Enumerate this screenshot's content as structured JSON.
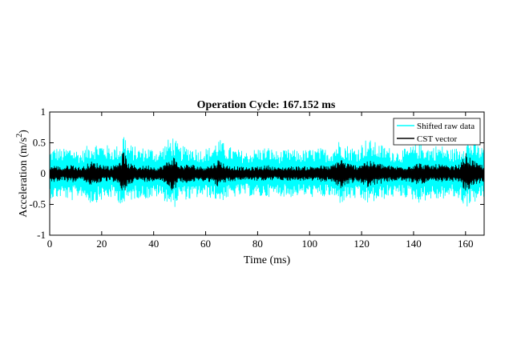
{
  "chart_data": {
    "type": "line",
    "title": "Operation Cycle: 167.152 ms",
    "xlabel": "Time (ms)",
    "ylabel": {
      "base": "Acceleration (m/s",
      "superscript": "2",
      "suffix": ")"
    },
    "xlim": [
      0,
      167.152
    ],
    "ylim": [
      -1,
      1
    ],
    "xticks": [
      0,
      20,
      40,
      60,
      80,
      100,
      120,
      140,
      160
    ],
    "yticks": [
      -1,
      -0.5,
      0,
      0.5,
      1
    ],
    "xtick_labels": [
      "0",
      "20",
      "40",
      "60",
      "80",
      "100",
      "120",
      "140",
      "160"
    ],
    "ytick_labels": [
      "-1",
      "-0.5",
      "0",
      "0.5",
      "1"
    ],
    "grid": false,
    "legend_position": "top-right",
    "series": [
      {
        "name": "Shifted raw data",
        "color": "#00FFFF",
        "envelope": {
          "x": [
            0,
            2,
            5,
            8,
            12,
            16,
            20,
            24,
            27.5,
            28.5,
            30,
            34,
            38,
            42,
            46,
            47.5,
            50,
            54,
            58,
            62,
            65,
            68,
            72,
            76,
            80,
            84,
            88,
            92,
            96,
            100,
            104,
            108,
            112,
            114,
            118,
            122,
            126,
            130,
            134,
            138,
            142,
            146,
            150,
            154,
            158,
            160,
            164,
            167.152
          ],
          "upper": [
            0.38,
            0.44,
            0.4,
            0.45,
            0.36,
            0.52,
            0.5,
            0.44,
            0.48,
            0.72,
            0.5,
            0.42,
            0.44,
            0.38,
            0.58,
            0.62,
            0.44,
            0.46,
            0.4,
            0.44,
            0.58,
            0.46,
            0.4,
            0.36,
            0.42,
            0.44,
            0.36,
            0.4,
            0.38,
            0.4,
            0.42,
            0.4,
            0.58,
            0.48,
            0.42,
            0.58,
            0.5,
            0.44,
            0.38,
            0.42,
            0.52,
            0.44,
            0.48,
            0.4,
            0.44,
            0.58,
            0.5,
            0.42
          ],
          "lower": [
            -0.4,
            -0.42,
            -0.38,
            -0.46,
            -0.36,
            -0.5,
            -0.44,
            -0.4,
            -0.5,
            -0.56,
            -0.46,
            -0.4,
            -0.42,
            -0.38,
            -0.5,
            -0.6,
            -0.4,
            -0.44,
            -0.38,
            -0.4,
            -0.46,
            -0.42,
            -0.38,
            -0.36,
            -0.4,
            -0.38,
            -0.36,
            -0.4,
            -0.36,
            -0.38,
            -0.4,
            -0.38,
            -0.5,
            -0.44,
            -0.42,
            -0.5,
            -0.46,
            -0.4,
            -0.38,
            -0.4,
            -0.48,
            -0.42,
            -0.44,
            -0.38,
            -0.44,
            -0.56,
            -0.46,
            -0.4
          ]
        }
      },
      {
        "name": "CST vector",
        "color": "#000000",
        "envelope": {
          "x": [
            0,
            2,
            5,
            8,
            12,
            16,
            20,
            24,
            27.5,
            28.5,
            30,
            34,
            38,
            42,
            46,
            47.5,
            50,
            54,
            58,
            62,
            65,
            68,
            72,
            76,
            80,
            84,
            88,
            92,
            96,
            100,
            104,
            108,
            112,
            114,
            118,
            122,
            126,
            130,
            134,
            138,
            142,
            146,
            150,
            154,
            158,
            160,
            164,
            167.152
          ],
          "upper": [
            0.12,
            0.14,
            0.1,
            0.16,
            0.1,
            0.2,
            0.16,
            0.12,
            0.26,
            0.4,
            0.18,
            0.12,
            0.14,
            0.1,
            0.22,
            0.3,
            0.14,
            0.16,
            0.12,
            0.14,
            0.24,
            0.14,
            0.12,
            0.1,
            0.12,
            0.14,
            0.1,
            0.12,
            0.12,
            0.12,
            0.14,
            0.12,
            0.26,
            0.18,
            0.14,
            0.22,
            0.18,
            0.14,
            0.12,
            0.14,
            0.18,
            0.14,
            0.16,
            0.12,
            0.16,
            0.34,
            0.18,
            0.14
          ],
          "lower": [
            -0.12,
            -0.14,
            -0.1,
            -0.16,
            -0.1,
            -0.2,
            -0.14,
            -0.12,
            -0.26,
            -0.38,
            -0.18,
            -0.12,
            -0.14,
            -0.1,
            -0.22,
            -0.3,
            -0.14,
            -0.16,
            -0.12,
            -0.14,
            -0.22,
            -0.14,
            -0.12,
            -0.1,
            -0.12,
            -0.12,
            -0.1,
            -0.12,
            -0.12,
            -0.12,
            -0.14,
            -0.12,
            -0.26,
            -0.18,
            -0.14,
            -0.22,
            -0.18,
            -0.14,
            -0.12,
            -0.14,
            -0.18,
            -0.14,
            -0.16,
            -0.12,
            -0.16,
            -0.32,
            -0.18,
            -0.14
          ]
        }
      }
    ]
  }
}
